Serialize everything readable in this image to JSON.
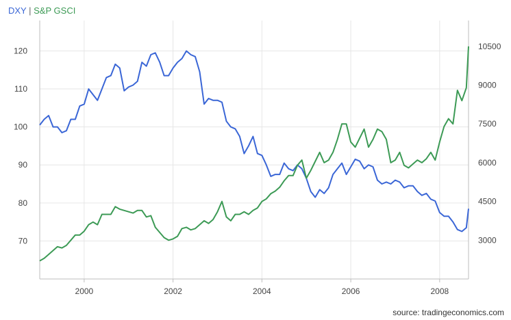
{
  "legend": {
    "series1": "DXY",
    "separator": "|",
    "series2": "S&P GSCI"
  },
  "source": "source: tradingeconomics.com",
  "colors": {
    "dxy": "#3a66d6",
    "gsci": "#3c9a55",
    "grid": "#e6e6e6",
    "axis": "#bdbdbd"
  },
  "chart_data": {
    "type": "line",
    "grid": true,
    "x_ticks": [
      2000,
      2002,
      2004,
      2006,
      2008
    ],
    "xlim": [
      1999.0,
      2008.65
    ],
    "y_left": {
      "ticks": [
        70,
        80,
        90,
        100,
        110,
        120
      ],
      "lim": [
        60,
        128
      ]
    },
    "y_right": {
      "ticks": [
        3000,
        4500,
        6000,
        7500,
        9000,
        10500
      ],
      "lim": [
        1500,
        11500
      ]
    },
    "series": [
      {
        "name": "DXY",
        "axis": "left",
        "x": [
          1999.0,
          1999.1,
          1999.2,
          1999.3,
          1999.4,
          1999.5,
          1999.6,
          1999.7,
          1999.8,
          1999.9,
          2000.0,
          2000.1,
          2000.2,
          2000.3,
          2000.4,
          2000.5,
          2000.6,
          2000.7,
          2000.8,
          2000.9,
          2001.0,
          2001.1,
          2001.2,
          2001.3,
          2001.4,
          2001.5,
          2001.6,
          2001.7,
          2001.8,
          2001.9,
          2002.0,
          2002.1,
          2002.2,
          2002.3,
          2002.4,
          2002.5,
          2002.6,
          2002.7,
          2002.8,
          2002.9,
          2003.0,
          2003.1,
          2003.2,
          2003.3,
          2003.4,
          2003.5,
          2003.6,
          2003.7,
          2003.8,
          2003.9,
          2004.0,
          2004.1,
          2004.2,
          2004.3,
          2004.4,
          2004.5,
          2004.6,
          2004.7,
          2004.8,
          2004.9,
          2005.0,
          2005.1,
          2005.2,
          2005.3,
          2005.4,
          2005.5,
          2005.6,
          2005.7,
          2005.8,
          2005.9,
          2006.0,
          2006.1,
          2006.2,
          2006.3,
          2006.4,
          2006.5,
          2006.6,
          2006.7,
          2006.8,
          2006.9,
          2007.0,
          2007.1,
          2007.2,
          2007.3,
          2007.4,
          2007.5,
          2007.6,
          2007.7,
          2007.8,
          2007.9,
          2008.0,
          2008.1,
          2008.2,
          2008.3,
          2008.4,
          2008.5,
          2008.6,
          2008.65
        ],
        "values": [
          100.5,
          102.0,
          103.0,
          100.0,
          100.0,
          98.5,
          99.0,
          102.0,
          102.0,
          105.5,
          106.0,
          110.0,
          108.5,
          107.0,
          110.0,
          113.0,
          113.5,
          116.5,
          115.5,
          109.5,
          110.5,
          111.0,
          112.0,
          117.0,
          116.0,
          119.0,
          119.5,
          117.0,
          113.5,
          113.5,
          115.5,
          117.0,
          118.0,
          120.0,
          119.0,
          118.5,
          114.5,
          106.0,
          107.5,
          107.0,
          107.0,
          106.5,
          101.5,
          100.0,
          99.5,
          97.5,
          93.0,
          95.0,
          97.5,
          93.0,
          92.5,
          90.0,
          87.0,
          87.5,
          87.5,
          90.5,
          89.0,
          88.5,
          90.0,
          89.0,
          86.5,
          83.0,
          81.5,
          83.5,
          82.5,
          84.0,
          87.5,
          89.0,
          90.5,
          87.5,
          89.5,
          91.5,
          91.0,
          89.0,
          90.0,
          89.5,
          86.0,
          85.0,
          85.5,
          85.0,
          86.0,
          85.5,
          84.0,
          84.5,
          84.5,
          83.0,
          82.0,
          82.5,
          81.0,
          80.5,
          77.5,
          76.5,
          76.5,
          75.0,
          73.0,
          72.5,
          73.5,
          78.5
        ]
      },
      {
        "name": "S&P GSCI",
        "axis": "right",
        "x": [
          1999.0,
          1999.1,
          1999.2,
          1999.3,
          1999.4,
          1999.5,
          1999.6,
          1999.7,
          1999.8,
          1999.9,
          2000.0,
          2000.1,
          2000.2,
          2000.3,
          2000.4,
          2000.5,
          2000.6,
          2000.7,
          2000.8,
          2000.9,
          2001.0,
          2001.1,
          2001.2,
          2001.3,
          2001.4,
          2001.5,
          2001.6,
          2001.7,
          2001.8,
          2001.9,
          2002.0,
          2002.1,
          2002.2,
          2002.3,
          2002.4,
          2002.5,
          2002.6,
          2002.7,
          2002.8,
          2002.9,
          2003.0,
          2003.1,
          2003.2,
          2003.3,
          2003.4,
          2003.5,
          2003.6,
          2003.7,
          2003.8,
          2003.9,
          2004.0,
          2004.1,
          2004.2,
          2004.3,
          2004.4,
          2004.5,
          2004.6,
          2004.7,
          2004.8,
          2004.9,
          2005.0,
          2005.1,
          2005.2,
          2005.3,
          2005.4,
          2005.5,
          2005.6,
          2005.7,
          2005.8,
          2005.9,
          2006.0,
          2006.1,
          2006.2,
          2006.3,
          2006.4,
          2006.5,
          2006.6,
          2006.7,
          2006.8,
          2006.9,
          2007.0,
          2007.1,
          2007.2,
          2007.3,
          2007.4,
          2007.5,
          2007.6,
          2007.7,
          2007.8,
          2007.9,
          2008.0,
          2008.1,
          2008.2,
          2008.3,
          2008.4,
          2008.5,
          2008.6,
          2008.65
        ],
        "values": [
          2200,
          2300,
          2450,
          2600,
          2750,
          2700,
          2800,
          3000,
          3200,
          3200,
          3350,
          3600,
          3700,
          3600,
          4000,
          4000,
          4000,
          4300,
          4200,
          4150,
          4100,
          4050,
          4150,
          4150,
          3900,
          3950,
          3500,
          3300,
          3100,
          3000,
          3050,
          3150,
          3450,
          3500,
          3400,
          3450,
          3600,
          3750,
          3650,
          3800,
          4100,
          4500,
          3900,
          3750,
          4000,
          4000,
          4100,
          4000,
          4150,
          4250,
          4500,
          4600,
          4800,
          4900,
          5050,
          5300,
          5500,
          5500,
          5900,
          6100,
          5400,
          5700,
          6050,
          6400,
          6000,
          6100,
          6400,
          6900,
          7500,
          7500,
          6800,
          6600,
          6950,
          7300,
          6600,
          6900,
          7300,
          7200,
          6900,
          6000,
          6100,
          6400,
          5900,
          5800,
          5950,
          6100,
          6000,
          6150,
          6400,
          6100,
          6800,
          7400,
          7700,
          7500,
          8800,
          8400,
          8900,
          10500
        ]
      }
    ]
  }
}
